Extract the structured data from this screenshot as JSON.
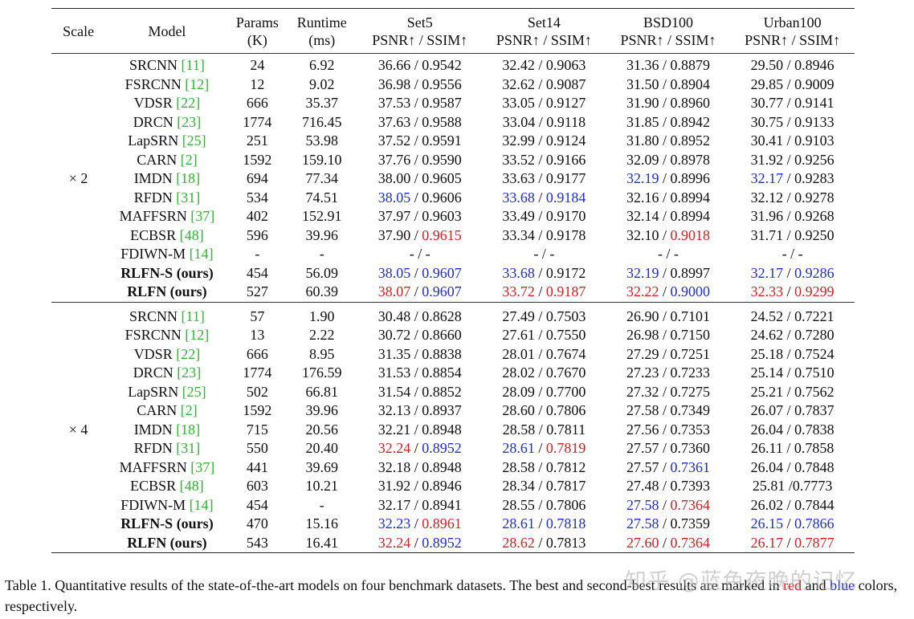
{
  "header": {
    "scale": "Scale",
    "model": "Model",
    "params": [
      "Params",
      "(K)"
    ],
    "runtime": [
      "Runtime",
      "(ms)"
    ],
    "datasets": [
      "Set5",
      "Set14",
      "BSD100",
      "Urban100"
    ],
    "metric": "PSNR↑ / SSIM↑"
  },
  "groups": [
    {
      "scale": "× 2",
      "rows": [
        {
          "name": "SRCNN",
          "ref": "[11]",
          "bold": false,
          "params": "24",
          "runtime": "6.92",
          "cells": [
            [
              "36.66",
              "k",
              " / ",
              "0.9542",
              "k"
            ],
            [
              "32.42",
              "k",
              " / ",
              "0.9063",
              "k"
            ],
            [
              "31.36",
              "k",
              " / ",
              "0.8879",
              "k"
            ],
            [
              "29.50",
              "k",
              " / ",
              "0.8946",
              "k"
            ]
          ]
        },
        {
          "name": "FSRCNN",
          "ref": "[12]",
          "bold": false,
          "params": "12",
          "runtime": "9.02",
          "cells": [
            [
              "36.98",
              "k",
              " / ",
              "0.9556",
              "k"
            ],
            [
              "32.62",
              "k",
              " / ",
              "0.9087",
              "k"
            ],
            [
              "31.50",
              "k",
              " / ",
              "0.8904",
              "k"
            ],
            [
              "29.85",
              "k",
              " / ",
              "0.9009",
              "k"
            ]
          ]
        },
        {
          "name": "VDSR",
          "ref": "[22]",
          "bold": false,
          "params": "666",
          "runtime": "35.37",
          "cells": [
            [
              "37.53",
              "k",
              " / ",
              "0.9587",
              "k"
            ],
            [
              "33.05",
              "k",
              " / ",
              "0.9127",
              "k"
            ],
            [
              "31.90",
              "k",
              " / ",
              "0.8960",
              "k"
            ],
            [
              "30.77",
              "k",
              " / ",
              "0.9141",
              "k"
            ]
          ]
        },
        {
          "name": "DRCN",
          "ref": "[23]",
          "bold": false,
          "params": "1774",
          "runtime": "716.45",
          "cells": [
            [
              "37.63",
              "k",
              " / ",
              "0.9588",
              "k"
            ],
            [
              "33.04",
              "k",
              " / ",
              "0.9118",
              "k"
            ],
            [
              "31.85",
              "k",
              " / ",
              "0.8942",
              "k"
            ],
            [
              "30.75",
              "k",
              " / ",
              "0.9133",
              "k"
            ]
          ]
        },
        {
          "name": "LapSRN",
          "ref": "[25]",
          "bold": false,
          "params": "251",
          "runtime": "53.98",
          "cells": [
            [
              "37.52",
              "k",
              " / ",
              "0.9591",
              "k"
            ],
            [
              "32.99",
              "k",
              " / ",
              "0.9124",
              "k"
            ],
            [
              "31.80",
              "k",
              " / ",
              "0.8952",
              "k"
            ],
            [
              "30.41",
              "k",
              " / ",
              "0.9103",
              "k"
            ]
          ]
        },
        {
          "name": "CARN",
          "ref": "[2]",
          "bold": false,
          "params": "1592",
          "runtime": "159.10",
          "cells": [
            [
              "37.76",
              "k",
              " / ",
              "0.9590",
              "k"
            ],
            [
              "33.52",
              "k",
              " / ",
              "0.9166",
              "k"
            ],
            [
              "32.09",
              "k",
              " / ",
              "0.8978",
              "k"
            ],
            [
              "31.92",
              "k",
              " / ",
              "0.9256",
              "k"
            ]
          ]
        },
        {
          "name": "IMDN",
          "ref": "[18]",
          "bold": false,
          "params": "694",
          "runtime": "77.34",
          "cells": [
            [
              "38.00",
              "k",
              " / ",
              "0.9605",
              "k"
            ],
            [
              "33.63",
              "k",
              " / ",
              "0.9177",
              "k"
            ],
            [
              "32.19",
              "b",
              " / ",
              "0.8996",
              "k"
            ],
            [
              "32.17",
              "b",
              " / ",
              "0.9283",
              "k"
            ]
          ]
        },
        {
          "name": "RFDN",
          "ref": "[31]",
          "bold": false,
          "params": "534",
          "runtime": "74.51",
          "cells": [
            [
              "38.05",
              "b",
              " / ",
              "0.9606",
              "k"
            ],
            [
              "33.68",
              "b",
              " / ",
              "0.9184",
              "b"
            ],
            [
              "32.16",
              "k",
              " / ",
              "0.8994",
              "k"
            ],
            [
              "32.12",
              "k",
              " / ",
              "0.9278",
              "k"
            ]
          ]
        },
        {
          "name": "MAFFSRN",
          "ref": "[37]",
          "bold": false,
          "params": "402",
          "runtime": "152.91",
          "cells": [
            [
              "37.97",
              "k",
              " / ",
              "0.9603",
              "k"
            ],
            [
              "33.49",
              "k",
              " / ",
              "0.9170",
              "k"
            ],
            [
              "32.14",
              "k",
              " / ",
              "0.8994",
              "k"
            ],
            [
              "31.96",
              "k",
              " / ",
              "0.9268",
              "k"
            ]
          ]
        },
        {
          "name": "ECBSR",
          "ref": "[48]",
          "bold": false,
          "params": "596",
          "runtime": "39.96",
          "cells": [
            [
              "37.90",
              "k",
              " / ",
              "0.9615",
              "r"
            ],
            [
              "33.34",
              "k",
              " / ",
              "0.9178",
              "k"
            ],
            [
              "32.10",
              "k",
              " / ",
              "0.9018",
              "r"
            ],
            [
              "31.71",
              "k",
              " / ",
              "0.9250",
              "k"
            ]
          ]
        },
        {
          "name": "FDIWN-M",
          "ref": "[14]",
          "bold": false,
          "params": "-",
          "runtime": "-",
          "cells": [
            [
              "-",
              "k",
              " / ",
              "-",
              "k"
            ],
            [
              "-",
              "k",
              " / ",
              "-",
              "k"
            ],
            [
              "-",
              "k",
              " / ",
              "-",
              "k"
            ],
            [
              "-",
              "k",
              " / ",
              "-",
              "k"
            ]
          ]
        },
        {
          "name": "RLFN-S (ours)",
          "ref": "",
          "bold": true,
          "params": "454",
          "runtime": "56.09",
          "cells": [
            [
              "38.05",
              "b",
              " / ",
              "0.9607",
              "b"
            ],
            [
              "33.68",
              "b",
              " / ",
              "0.9172",
              "k"
            ],
            [
              "32.19",
              "b",
              " / ",
              "0.8997",
              "k"
            ],
            [
              "32.17",
              "b",
              " / ",
              "0.9286",
              "b"
            ]
          ]
        },
        {
          "name": "RLFN (ours)",
          "ref": "",
          "bold": true,
          "params": "527",
          "runtime": "60.39",
          "cells": [
            [
              "38.07",
              "r",
              " / ",
              "0.9607",
              "b"
            ],
            [
              "33.72",
              "r",
              " / ",
              "0.9187",
              "r"
            ],
            [
              "32.22",
              "r",
              " / ",
              "0.9000",
              "b"
            ],
            [
              "32.33",
              "r",
              " / ",
              "0.9299",
              "r"
            ]
          ]
        }
      ]
    },
    {
      "scale": "× 4",
      "rows": [
        {
          "name": "SRCNN",
          "ref": "[11]",
          "bold": false,
          "params": "57",
          "runtime": "1.90",
          "cells": [
            [
              "30.48",
              "k",
              " / ",
              "0.8628",
              "k"
            ],
            [
              "27.49",
              "k",
              " / ",
              "0.7503",
              "k"
            ],
            [
              "26.90",
              "k",
              " / ",
              "0.7101",
              "k"
            ],
            [
              "24.52",
              "k",
              " / ",
              "0.7221",
              "k"
            ]
          ]
        },
        {
          "name": "FSRCNN",
          "ref": "[12]",
          "bold": false,
          "params": "13",
          "runtime": "2.22",
          "cells": [
            [
              "30.72",
              "k",
              " / ",
              "0.8660",
              "k"
            ],
            [
              "27.61",
              "k",
              " / ",
              "0.7550",
              "k"
            ],
            [
              "26.98",
              "k",
              " / ",
              "0.7150",
              "k"
            ],
            [
              "24.62",
              "k",
              " / ",
              "0.7280",
              "k"
            ]
          ]
        },
        {
          "name": "VDSR",
          "ref": "[22]",
          "bold": false,
          "params": "666",
          "runtime": "8.95",
          "cells": [
            [
              "31.35",
              "k",
              " / ",
              "0.8838",
              "k"
            ],
            [
              "28.01",
              "k",
              " / ",
              "0.7674",
              "k"
            ],
            [
              "27.29",
              "k",
              " / ",
              "0.7251",
              "k"
            ],
            [
              "25.18",
              "k",
              " / ",
              "0.7524",
              "k"
            ]
          ]
        },
        {
          "name": "DRCN",
          "ref": "[23]",
          "bold": false,
          "params": "1774",
          "runtime": "176.59",
          "cells": [
            [
              "31.53",
              "k",
              " / ",
              "0.8854",
              "k"
            ],
            [
              "28.02",
              "k",
              " / ",
              "0.7670",
              "k"
            ],
            [
              "27.23",
              "k",
              " / ",
              "0.7233",
              "k"
            ],
            [
              "25.14",
              "k",
              " / ",
              "0.7510",
              "k"
            ]
          ]
        },
        {
          "name": "LapSRN",
          "ref": "[25]",
          "bold": false,
          "params": "502",
          "runtime": "66.81",
          "cells": [
            [
              "31.54",
              "k",
              " / ",
              "0.8852",
              "k"
            ],
            [
              "28.09",
              "k",
              " / ",
              "0.7700",
              "k"
            ],
            [
              "27.32",
              "k",
              " / ",
              "0.7275",
              "k"
            ],
            [
              "25.21",
              "k",
              " / ",
              "0.7562",
              "k"
            ]
          ]
        },
        {
          "name": "CARN",
          "ref": "[2]",
          "bold": false,
          "params": "1592",
          "runtime": "39.96",
          "cells": [
            [
              "32.13",
              "k",
              " / ",
              "0.8937",
              "k"
            ],
            [
              "28.60",
              "k",
              " / ",
              "0.7806",
              "k"
            ],
            [
              "27.58",
              "k",
              " / ",
              "0.7349",
              "k"
            ],
            [
              "26.07",
              "k",
              " / ",
              "0.7837",
              "k"
            ]
          ]
        },
        {
          "name": "IMDN",
          "ref": "[18]",
          "bold": false,
          "params": "715",
          "runtime": "20.56",
          "cells": [
            [
              "32.21",
              "k",
              " / ",
              "0.8948",
              "k"
            ],
            [
              "28.58",
              "k",
              " / ",
              "0.7811",
              "k"
            ],
            [
              "27.56",
              "k",
              " / ",
              "0.7353",
              "k"
            ],
            [
              "26.04",
              "k",
              " / ",
              "0.7838",
              "k"
            ]
          ]
        },
        {
          "name": "RFDN",
          "ref": "[31]",
          "bold": false,
          "params": "550",
          "runtime": "20.40",
          "cells": [
            [
              "32.24",
              "r",
              " / ",
              "0.8952",
              "b"
            ],
            [
              "28.61",
              "b",
              " / ",
              "0.7819",
              "r"
            ],
            [
              "27.57",
              "k",
              " / ",
              "0.7360",
              "k"
            ],
            [
              "26.11",
              "k",
              " / ",
              "0.7858",
              "k"
            ]
          ]
        },
        {
          "name": "MAFFSRN",
          "ref": "[37]",
          "bold": false,
          "params": "441",
          "runtime": "39.69",
          "cells": [
            [
              "32.18",
              "k",
              " / ",
              "0.8948",
              "k"
            ],
            [
              "28.58",
              "k",
              " / ",
              "0.7812",
              "k"
            ],
            [
              "27.57",
              "k",
              " / ",
              "0.7361",
              "b"
            ],
            [
              "26.04",
              "k",
              " / ",
              "0.7848",
              "k"
            ]
          ]
        },
        {
          "name": "ECBSR",
          "ref": "[48]",
          "bold": false,
          "params": "603",
          "runtime": "10.21",
          "cells": [
            [
              "31.92",
              "k",
              " / ",
              "0.8946",
              "k"
            ],
            [
              "28.34",
              "k",
              " / ",
              "0.7817",
              "k"
            ],
            [
              "27.48",
              "k",
              " / ",
              "0.7393",
              "k"
            ],
            [
              "25.81",
              "k",
              " /",
              "0.7773",
              "k"
            ]
          ]
        },
        {
          "name": "FDIWN-M",
          "ref": "[14]",
          "bold": false,
          "params": "454",
          "runtime": "-",
          "cells": [
            [
              "32.17",
              "k",
              " / ",
              "0.8941",
              "k"
            ],
            [
              "28.55",
              "k",
              " / ",
              "0.7806",
              "k"
            ],
            [
              "27.58",
              "b",
              " / ",
              "0.7364",
              "r"
            ],
            [
              "26.02",
              "k",
              " / ",
              "0.7844",
              "k"
            ]
          ]
        },
        {
          "name": "RLFN-S (ours)",
          "ref": "",
          "bold": true,
          "params": "470",
          "runtime": "15.16",
          "cells": [
            [
              "32.23",
              "b",
              " / ",
              "0.8961",
              "r"
            ],
            [
              "28.61",
              "b",
              " / ",
              "0.7818",
              "b"
            ],
            [
              "27.58",
              "b",
              " / ",
              "0.7359",
              "k"
            ],
            [
              "26.15",
              "b",
              " / ",
              "0.7866",
              "b"
            ]
          ]
        },
        {
          "name": "RLFN (ours)",
          "ref": "",
          "bold": true,
          "params": "543",
          "runtime": "16.41",
          "cells": [
            [
              "32.24",
              "r",
              " / ",
              "0.8952",
              "b"
            ],
            [
              "28.62",
              "r",
              " / ",
              "0.7813",
              "k"
            ],
            [
              "27.60",
              "r",
              " / ",
              "0.7364",
              "r"
            ],
            [
              "26.17",
              "r",
              " / ",
              "0.7877",
              "r"
            ]
          ]
        }
      ]
    }
  ],
  "caption": {
    "lead": "Table 1. Quantitative results of the state-of-the-art models on four benchmark datasets. The best and second-best results are marked in ",
    "red_word": "red",
    "mid": " and ",
    "blue_word": "blue",
    "tail": " colors, respectively."
  },
  "watermark": "知乎 @蓝色夜晚的记忆",
  "colors": {
    "k": "#111111",
    "r": "#e01c1c",
    "b": "#1c2ddb",
    "ref": "#2bbb2b"
  }
}
